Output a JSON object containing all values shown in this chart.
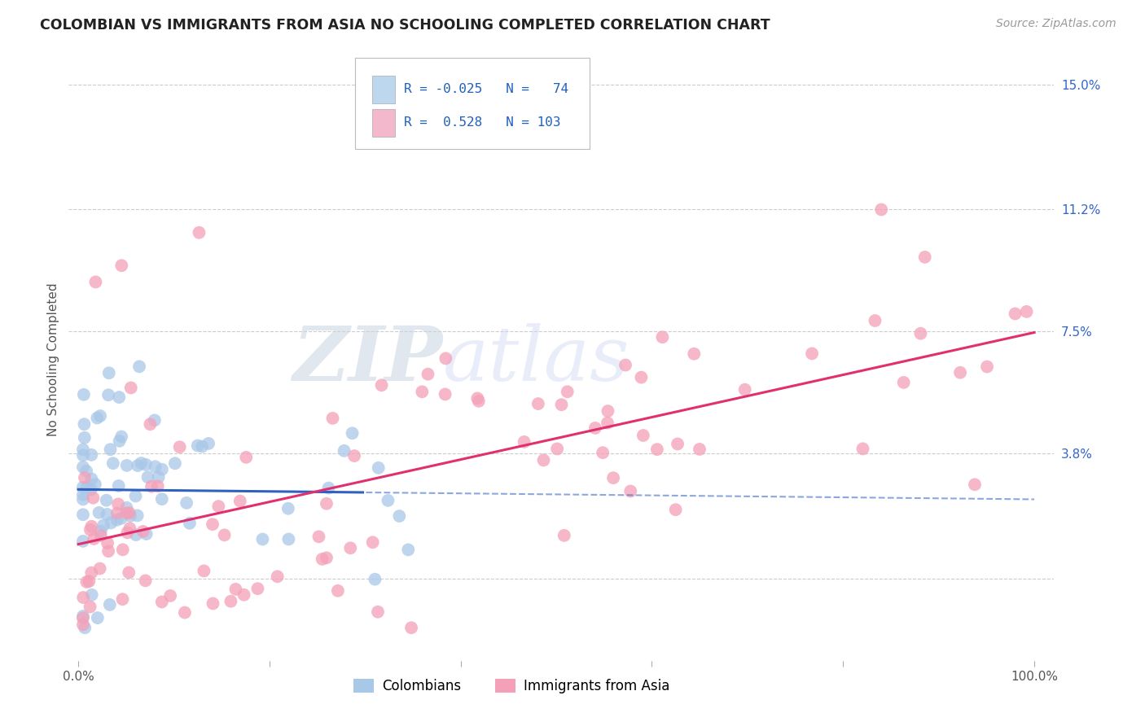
{
  "title": "COLOMBIAN VS IMMIGRANTS FROM ASIA NO SCHOOLING COMPLETED CORRELATION CHART",
  "source": "Source: ZipAtlas.com",
  "ylabel": "No Schooling Completed",
  "xlim": [
    -0.01,
    1.02
  ],
  "ylim": [
    -0.025,
    0.158
  ],
  "ytick_positions": [
    0.0,
    0.038,
    0.075,
    0.112,
    0.15
  ],
  "ytick_labels": [
    "",
    "3.8%",
    "7.5%",
    "11.2%",
    "15.0%"
  ],
  "colombian_R": -0.025,
  "colombian_N": 74,
  "asian_R": 0.528,
  "asian_N": 103,
  "color_colombian": "#a8c8e8",
  "color_asian": "#f4a0b8",
  "color_colombian_line": "#3060c0",
  "color_asian_line": "#e03070",
  "background_color": "#ffffff",
  "grid_color": "#cccccc",
  "watermark_zip": "ZIP",
  "watermark_atlas": "atlas",
  "legend_box_color_colombian": "#bdd7ee",
  "legend_box_color_asian": "#f4b8cc",
  "legend_text_color": "#2060c0"
}
